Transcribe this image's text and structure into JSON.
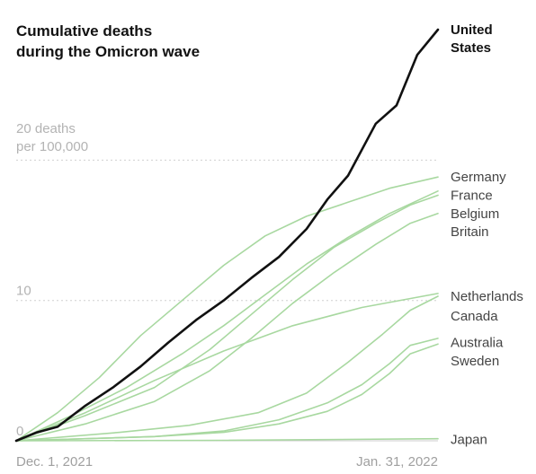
{
  "chart_data": {
    "type": "line",
    "title": [
      "Cumulative deaths",
      "during the Omicron wave"
    ],
    "ylabel": [
      "20 deaths",
      "per 100,000"
    ],
    "ylim": [
      0,
      30
    ],
    "yticks": [
      {
        "value": 20,
        "label": "20"
      },
      {
        "value": 10,
        "label": "10"
      },
      {
        "value": 0,
        "label": "0"
      }
    ],
    "xlim": [
      "2021-12-01",
      "2022-01-31"
    ],
    "xticks": [
      {
        "value": "2021-12-01",
        "label": "Dec. 1, 2021"
      },
      {
        "value": "2022-01-31",
        "label": "Jan. 31, 2022"
      }
    ],
    "grid": true,
    "highlight_color": "#111111",
    "context_color": "#a8d8a0",
    "series": [
      {
        "name": "United States",
        "highlight": true,
        "values": [
          [
            0,
            0
          ],
          [
            3,
            0.6
          ],
          [
            6,
            1.0
          ],
          [
            10,
            2.5
          ],
          [
            14,
            3.8
          ],
          [
            18,
            5.3
          ],
          [
            22,
            7.0
          ],
          [
            26,
            8.6
          ],
          [
            30,
            10.0
          ],
          [
            34,
            11.6
          ],
          [
            38,
            13.1
          ],
          [
            42,
            15.1
          ],
          [
            45,
            17.2
          ],
          [
            48,
            18.9
          ],
          [
            52,
            22.6
          ],
          [
            55,
            23.9
          ],
          [
            58,
            27.5
          ],
          [
            61,
            29.3
          ]
        ]
      },
      {
        "name": "Germany",
        "values": [
          [
            0,
            0
          ],
          [
            6,
            2.0
          ],
          [
            12,
            4.5
          ],
          [
            18,
            7.5
          ],
          [
            24,
            10.0
          ],
          [
            30,
            12.5
          ],
          [
            36,
            14.6
          ],
          [
            42,
            16.0
          ],
          [
            48,
            17.0
          ],
          [
            54,
            18.0
          ],
          [
            61,
            18.8
          ]
        ]
      },
      {
        "name": "France",
        "values": [
          [
            0,
            0
          ],
          [
            8,
            1.8
          ],
          [
            16,
            3.8
          ],
          [
            24,
            6.2
          ],
          [
            30,
            8.2
          ],
          [
            36,
            10.4
          ],
          [
            42,
            12.6
          ],
          [
            48,
            14.5
          ],
          [
            54,
            16.2
          ],
          [
            61,
            17.8
          ]
        ]
      },
      {
        "name": "Belgium",
        "values": [
          [
            0,
            0
          ],
          [
            10,
            1.8
          ],
          [
            20,
            3.8
          ],
          [
            28,
            6.5
          ],
          [
            34,
            9.0
          ],
          [
            40,
            11.5
          ],
          [
            46,
            13.8
          ],
          [
            52,
            15.5
          ],
          [
            57,
            16.8
          ],
          [
            61,
            17.5
          ]
        ]
      },
      {
        "name": "Britain",
        "values": [
          [
            0,
            0
          ],
          [
            10,
            1.2
          ],
          [
            20,
            2.8
          ],
          [
            28,
            5.0
          ],
          [
            34,
            7.3
          ],
          [
            40,
            9.8
          ],
          [
            46,
            12.0
          ],
          [
            52,
            14.0
          ],
          [
            57,
            15.5
          ],
          [
            61,
            16.2
          ]
        ]
      },
      {
        "name": "Netherlands",
        "values": [
          [
            0,
            0
          ],
          [
            10,
            2.0
          ],
          [
            20,
            4.3
          ],
          [
            30,
            6.4
          ],
          [
            40,
            8.2
          ],
          [
            50,
            9.5
          ],
          [
            61,
            10.5
          ]
        ]
      },
      {
        "name": "Canada",
        "values": [
          [
            0,
            0
          ],
          [
            15,
            0.6
          ],
          [
            25,
            1.1
          ],
          [
            35,
            2.0
          ],
          [
            42,
            3.4
          ],
          [
            48,
            5.6
          ],
          [
            53,
            7.6
          ],
          [
            57,
            9.3
          ],
          [
            61,
            10.3
          ]
        ]
      },
      {
        "name": "Australia",
        "values": [
          [
            0,
            0
          ],
          [
            20,
            0.3
          ],
          [
            30,
            0.7
          ],
          [
            38,
            1.5
          ],
          [
            45,
            2.7
          ],
          [
            50,
            4.0
          ],
          [
            54,
            5.5
          ],
          [
            57,
            6.8
          ],
          [
            61,
            7.3
          ]
        ]
      },
      {
        "name": "Sweden",
        "values": [
          [
            0,
            0
          ],
          [
            20,
            0.3
          ],
          [
            30,
            0.6
          ],
          [
            38,
            1.2
          ],
          [
            45,
            2.1
          ],
          [
            50,
            3.3
          ],
          [
            54,
            4.8
          ],
          [
            57,
            6.2
          ],
          [
            61,
            6.9
          ]
        ]
      },
      {
        "name": "Japan",
        "values": [
          [
            0,
            0
          ],
          [
            30,
            0.03
          ],
          [
            61,
            0.15
          ]
        ]
      }
    ],
    "end_labels": [
      {
        "lines": [
          "United",
          "States"
        ],
        "bold": true,
        "y": 29.3
      },
      {
        "lines": [
          "Germany"
        ],
        "y": 18.8
      },
      {
        "lines": [
          "France"
        ],
        "y": 17.5
      },
      {
        "lines": [
          "Belgium"
        ],
        "y": 16.2
      },
      {
        "lines": [
          "Britain"
        ],
        "y": 14.9
      },
      {
        "lines": [
          "Netherlands"
        ],
        "y": 10.3
      },
      {
        "lines": [
          "Canada"
        ],
        "y": 8.9
      },
      {
        "lines": [
          "Australia"
        ],
        "y": 7.0
      },
      {
        "lines": [
          "Sweden"
        ],
        "y": 5.7
      },
      {
        "lines": [
          "Japan"
        ],
        "y": 0.1
      }
    ]
  }
}
